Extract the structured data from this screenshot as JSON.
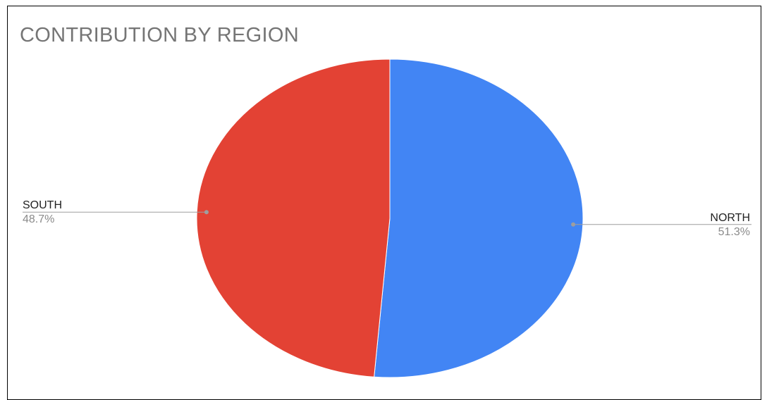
{
  "chart_data": {
    "type": "pie",
    "title": "CONTRIBUTION BY REGION",
    "slices": [
      {
        "label": "NORTH",
        "value": 51.3,
        "percent_label": "51.3%",
        "color": "#4285f4",
        "label_side": "right"
      },
      {
        "label": "SOUTH",
        "value": 48.7,
        "percent_label": "48.7%",
        "color": "#e34234",
        "label_side": "left"
      }
    ],
    "start_angle": "12 o'clock",
    "direction": "clockwise",
    "legend": "none",
    "leader_line_color": "#9e9e9e"
  }
}
